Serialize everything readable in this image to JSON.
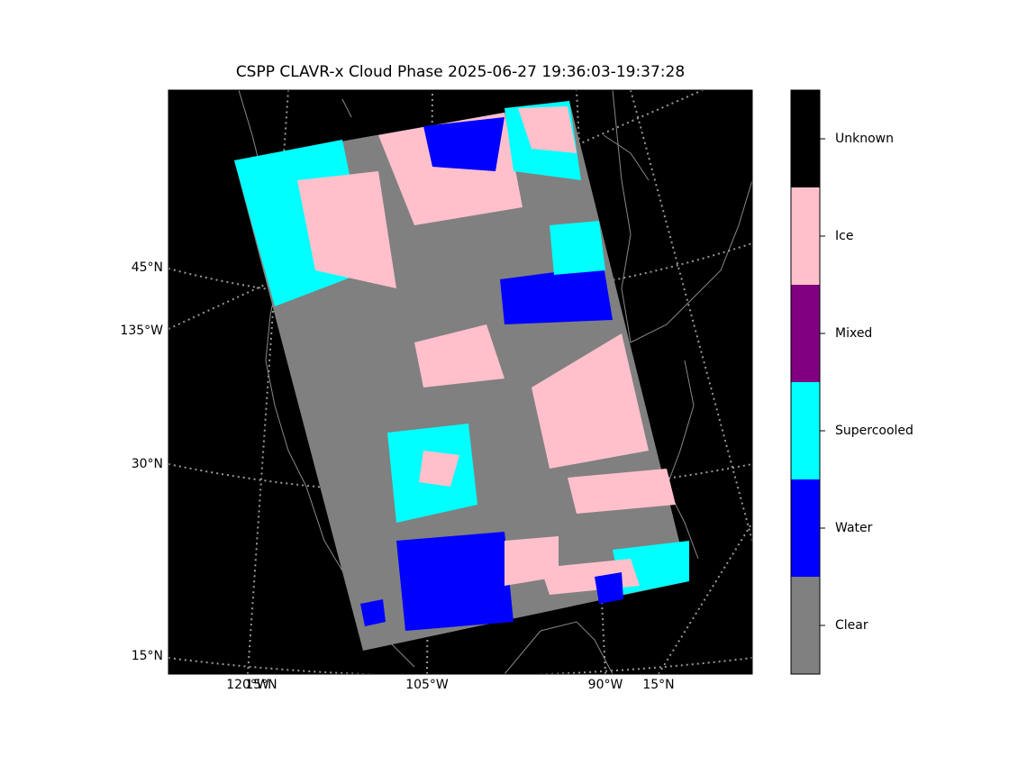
{
  "title": "CSPP CLAVR-x Cloud Phase 2025-06-27 19:36:03-19:37:28",
  "map": {
    "left_labels": [
      "45°N",
      "135°W",
      "30°N",
      "15°N"
    ],
    "bottom_labels": [
      "120°W",
      "15°N",
      "105°W",
      "90°W",
      "15°N"
    ]
  },
  "legend": {
    "classes": [
      {
        "label": "Clear",
        "color": "#808080"
      },
      {
        "label": "Water",
        "color": "#0000ff"
      },
      {
        "label": "Supercooled",
        "color": "#00ffff"
      },
      {
        "label": "Mixed",
        "color": "#800080"
      },
      {
        "label": "Ice",
        "color": "#ffc0cb"
      },
      {
        "label": "Unknown",
        "color": "#000000"
      }
    ]
  }
}
